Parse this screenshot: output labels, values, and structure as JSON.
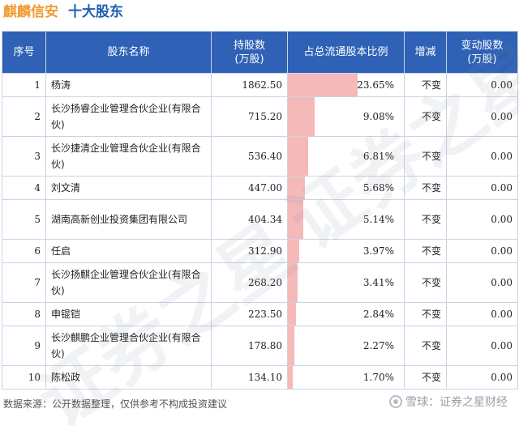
{
  "title": {
    "company": "麒麟信安",
    "subtitle": "十大股东"
  },
  "headers": {
    "index": "序号",
    "name": "股东名称",
    "shares": "持股数\n(万股)",
    "ratio": "占总流通股本比例",
    "change_type": "增减",
    "change": "变动股数\n(万股)"
  },
  "rows": [
    {
      "index": "1",
      "name": "杨涛",
      "shares": "1862.50",
      "ratio": "23.65%",
      "ratio_value": 23.65,
      "change_type": "不变",
      "change": "0.00"
    },
    {
      "index": "2",
      "name": "长沙扬睿企业管理合伙企业(有限合伙)",
      "shares": "715.20",
      "ratio": "9.08%",
      "ratio_value": 9.08,
      "change_type": "不变",
      "change": "0.00"
    },
    {
      "index": "3",
      "name": "长沙捷清企业管理合伙企业(有限合伙)",
      "shares": "536.40",
      "ratio": "6.81%",
      "ratio_value": 6.81,
      "change_type": "不变",
      "change": "0.00"
    },
    {
      "index": "4",
      "name": "刘文清",
      "shares": "447.00",
      "ratio": "5.68%",
      "ratio_value": 5.68,
      "change_type": "不变",
      "change": "0.00"
    },
    {
      "index": "5",
      "name": "湖南高新创业投资集团有限公司",
      "shares": "404.34",
      "ratio": "5.14%",
      "ratio_value": 5.14,
      "change_type": "不变",
      "change": "0.00"
    },
    {
      "index": "6",
      "name": "任启",
      "shares": "312.90",
      "ratio": "3.97%",
      "ratio_value": 3.97,
      "change_type": "不变",
      "change": "0.00"
    },
    {
      "index": "7",
      "name": "长沙扬麒企业管理合伙企业(有限合伙)",
      "shares": "268.20",
      "ratio": "3.41%",
      "ratio_value": 3.41,
      "change_type": "不变",
      "change": "0.00"
    },
    {
      "index": "8",
      "name": "申锟铠",
      "shares": "223.50",
      "ratio": "2.84%",
      "ratio_value": 2.84,
      "change_type": "不变",
      "change": "0.00"
    },
    {
      "index": "9",
      "name": "长沙麒鹏企业管理合伙企业(有限合伙)",
      "shares": "178.80",
      "ratio": "2.27%",
      "ratio_value": 2.27,
      "change_type": "不变",
      "change": "0.00"
    },
    {
      "index": "10",
      "name": "陈松政",
      "shares": "134.10",
      "ratio": "1.70%",
      "ratio_value": 1.7,
      "change_type": "不变",
      "change": "0.00"
    }
  ],
  "footer": {
    "source": "数据来源：公开数据整理，仅供参考不构成投资建议",
    "brand": "雪球：证券之星财经"
  },
  "watermark": "证券之星",
  "colors": {
    "header_bg": "#2f62b6",
    "bar": "#f6b9b9",
    "title_company": "#f29a2e",
    "title_sub": "#1d5fb0"
  },
  "icons": {
    "footer_logo": "snowball-icon"
  }
}
